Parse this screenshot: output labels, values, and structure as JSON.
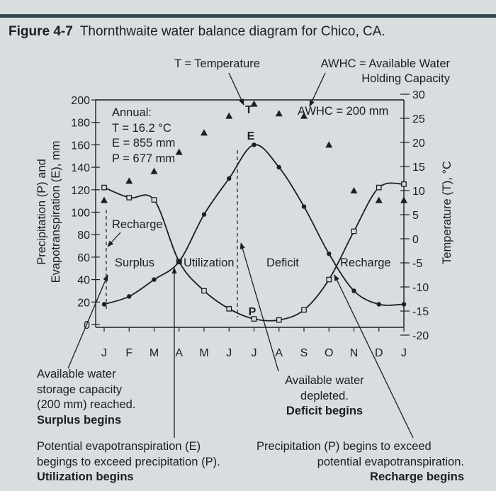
{
  "figure": {
    "number": "Figure 4-7",
    "title": "Thornthwaite water balance diagram for Chico, CA."
  },
  "chart_data": {
    "type": "line",
    "title": "Thornthwaite water balance diagram for Chico, CA.",
    "categories": [
      "J",
      "F",
      "M",
      "A",
      "M",
      "J",
      "J",
      "A",
      "S",
      "O",
      "N",
      "D",
      "J"
    ],
    "ylabel_left": "Precipitation (P) and Evapotranspiration (E), mm",
    "ylabel_right": "Temperature (T), °C",
    "ylim_left": [
      0,
      200
    ],
    "yticks_left": [
      0,
      20,
      40,
      60,
      80,
      100,
      120,
      140,
      160,
      180,
      200
    ],
    "ylim_right": [
      -20,
      30
    ],
    "yticks_right": [
      -20,
      -15,
      -10,
      -5,
      0,
      5,
      10,
      15,
      20,
      25,
      30
    ],
    "series": [
      {
        "name": "Precipitation (P)",
        "marker": "square",
        "axis": "left",
        "x": [
          0,
          1,
          2,
          3,
          4,
          5,
          6,
          7,
          8,
          9,
          10,
          11,
          12
        ],
        "values": [
          122,
          113,
          111,
          56,
          30,
          14,
          5,
          4,
          13,
          40,
          83,
          122,
          125
        ]
      },
      {
        "name": "Evapotranspiration (E)",
        "marker": "dot",
        "axis": "left",
        "x": [
          0,
          1,
          2,
          3,
          4,
          5,
          6,
          7,
          8,
          9,
          10,
          11,
          12
        ],
        "values": [
          18,
          25,
          40,
          56,
          98,
          130,
          160,
          140,
          105,
          63,
          30,
          18,
          18
        ]
      },
      {
        "name": "Temperature (T)",
        "marker": "triangle",
        "axis": "right",
        "x": [
          0,
          1,
          2,
          3,
          4,
          5,
          6,
          7,
          8,
          9,
          10,
          11,
          12
        ],
        "values": [
          8,
          12,
          14,
          18,
          22,
          25.5,
          28,
          26,
          25.5,
          19.5,
          10,
          8,
          8
        ]
      }
    ],
    "point_labels": {
      "temperature": "T",
      "evapotranspiration": "E",
      "precipitation": "P"
    },
    "annual": {
      "heading": "Annual:",
      "temperature": "T = 16.2 °C",
      "evapotranspiration": "E = 855 mm",
      "precipitation": "P = 677 mm"
    },
    "awhc": "AWHC = 200 mm",
    "zones": [
      "Recharge",
      "Surplus",
      "Utilization",
      "Deficit",
      "Recharge"
    ],
    "legend_notes": {
      "temperature": "T = Temperature",
      "awhc_line1": "AWHC = Available Water",
      "awhc_line2": "Holding Capacity"
    },
    "annotations": {
      "surplus": {
        "line1": "Available water",
        "line2": "storage capacity",
        "line3": "(200 mm) reached.",
        "bold": "Surplus begins"
      },
      "utilization": {
        "line1": "Potential evapotranspiration (E)",
        "line2": "begings to exceed precipitation (P).",
        "bold": "Utilization begins"
      },
      "deficit": {
        "line1": "Available water",
        "line2": "depleted.",
        "bold": "Deficit begins"
      },
      "recharge": {
        "line1": "Precipitation (P) begins to exceed",
        "line2": "potential evapotranspiration.",
        "bold": "Recharge begins"
      }
    },
    "grid": false
  }
}
